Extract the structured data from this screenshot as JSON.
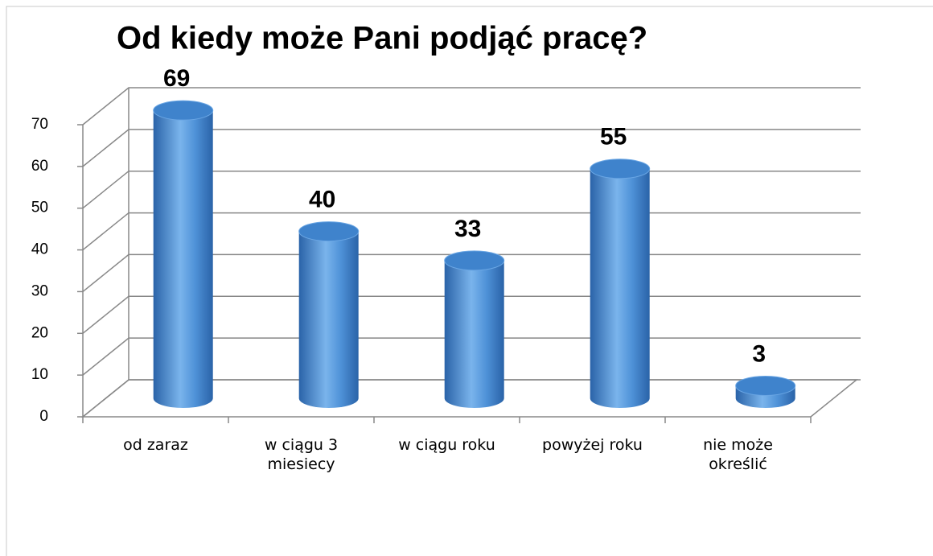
{
  "chart_data": {
    "type": "bar3d",
    "title": "Od kiedy może Pani podjąć pracę?",
    "categories": [
      "od zaraz",
      "w ciągu 3\nmiesiecy",
      "w ciągu roku",
      "powyżej roku",
      "nie może\nokreślić"
    ],
    "values": [
      69,
      40,
      33,
      55,
      3
    ],
    "color": "#3c80c8",
    "ylim": [
      0,
      70
    ],
    "yticks": [
      0,
      10,
      20,
      30,
      40,
      50,
      60,
      70
    ],
    "grid": true
  }
}
